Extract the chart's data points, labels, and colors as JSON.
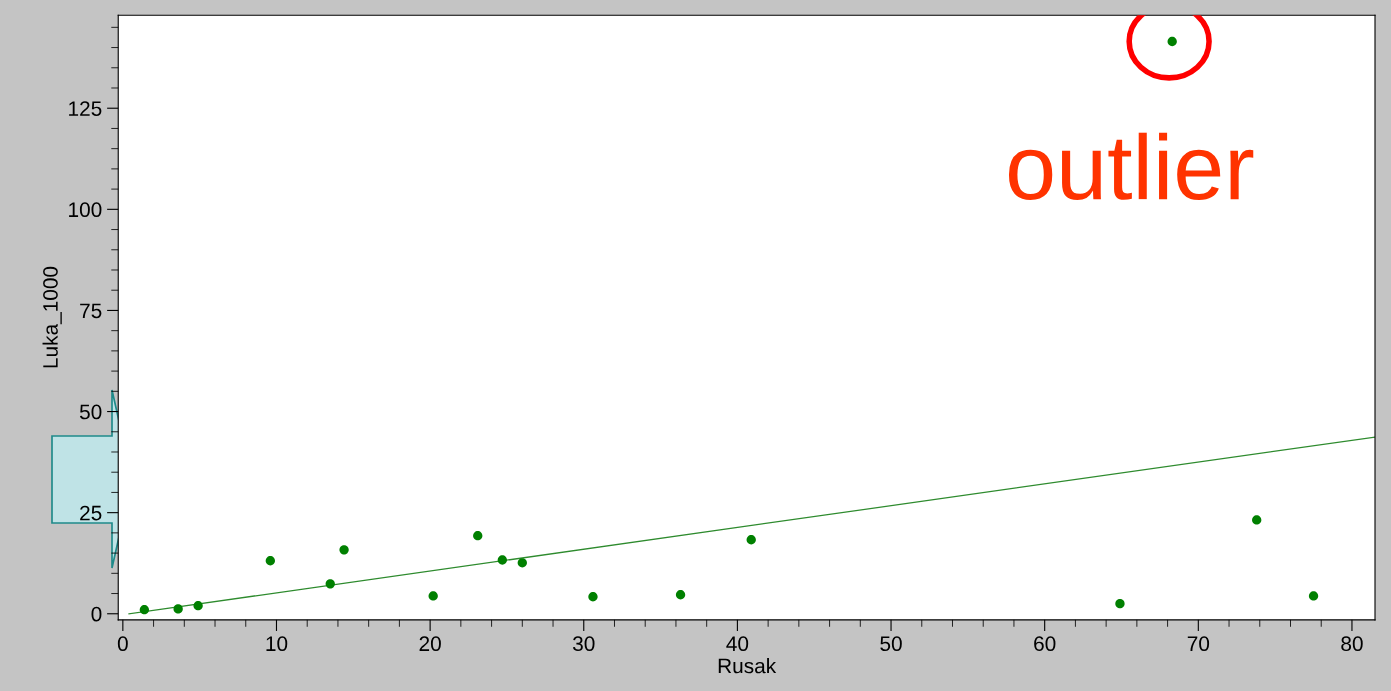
{
  "chart_data": {
    "type": "scatter",
    "xlabel": "Rusak",
    "ylabel": "Luka_1000",
    "xlim": [
      -0.3,
      81.5
    ],
    "ylim": [
      -1.5,
      148
    ],
    "xticks": [
      0,
      10,
      20,
      30,
      40,
      50,
      60,
      70,
      80
    ],
    "yticks": [
      0,
      25,
      50,
      75,
      100,
      125
    ],
    "grid": false,
    "annotations": [
      "outlier"
    ],
    "series": [
      {
        "marker": "circle",
        "color": "#008000",
        "x": [
          1.4,
          3.6,
          4.9,
          9.6,
          13.5,
          14.4,
          20.2,
          23.1,
          24.7,
          26.0,
          30.6,
          36.3,
          40.9,
          64.9,
          68.3,
          73.8,
          77.5
        ],
        "values": [
          1.0,
          1.2,
          2.0,
          13.1,
          7.4,
          15.8,
          4.4,
          19.3,
          13.3,
          12.6,
          4.2,
          4.7,
          18.3,
          2.5,
          141.5,
          23.2,
          4.4
        ]
      },
      {
        "type": "line",
        "marker": "none",
        "color": "#2e8b2e",
        "x": [
          0.4,
          81.5
        ],
        "values": [
          0,
          43.7
        ]
      }
    ]
  }
}
